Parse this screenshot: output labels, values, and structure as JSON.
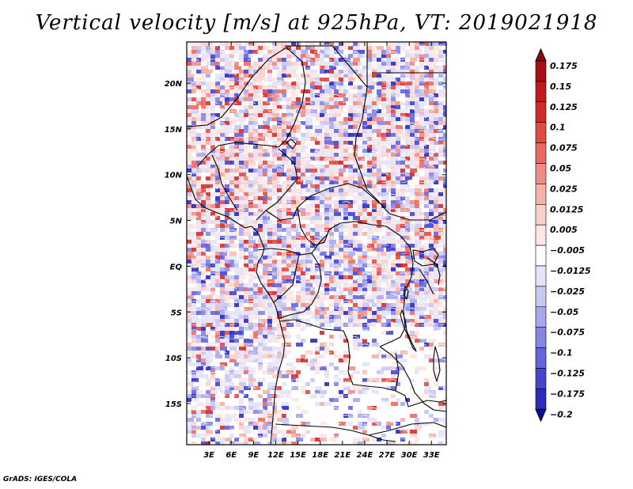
{
  "title": "Vertical velocity [m/s] at 925hPa, VT: 2019021918",
  "credit": "GrADS: IGES/COLA",
  "map": {
    "lon_range": [
      0,
      35
    ],
    "lat_range": [
      -19.5,
      24.5
    ],
    "lon_ticks": [
      {
        "value": 3,
        "label": "3E"
      },
      {
        "value": 6,
        "label": "6E"
      },
      {
        "value": 9,
        "label": "9E"
      },
      {
        "value": 12,
        "label": "12E"
      },
      {
        "value": 15,
        "label": "15E"
      },
      {
        "value": 18,
        "label": "18E"
      },
      {
        "value": 21,
        "label": "21E"
      },
      {
        "value": 24,
        "label": "24E"
      },
      {
        "value": 27,
        "label": "27E"
      },
      {
        "value": 30,
        "label": "30E"
      },
      {
        "value": 33,
        "label": "33E"
      }
    ],
    "lat_ticks": [
      {
        "value": 20,
        "label": "20N"
      },
      {
        "value": 15,
        "label": "15N"
      },
      {
        "value": 10,
        "label": "10N"
      },
      {
        "value": 5,
        "label": "5N"
      },
      {
        "value": 0,
        "label": "EQ"
      },
      {
        "value": -5,
        "label": "5S"
      },
      {
        "value": -10,
        "label": "10S"
      },
      {
        "value": -15,
        "label": "15S"
      }
    ]
  },
  "colorbar": {
    "levels": [
      {
        "label": "0.175",
        "color": "#a50f15"
      },
      {
        "label": "0.15",
        "color": "#c01a1f"
      },
      {
        "label": "0.125",
        "color": "#d42a2a"
      },
      {
        "label": "0.1",
        "color": "#e24a43"
      },
      {
        "label": "0.075",
        "color": "#ea6a63"
      },
      {
        "label": "0.05",
        "color": "#f08d86"
      },
      {
        "label": "0.025",
        "color": "#f6b1ab"
      },
      {
        "label": "0.0125",
        "color": "#fad0cc"
      },
      {
        "label": "0.005",
        "color": "#fde6e3"
      },
      {
        "label": "−0.005",
        "color": "#ffffff"
      },
      {
        "label": "−0.0125",
        "color": "#e3e3fa"
      },
      {
        "label": "−0.025",
        "color": "#c7c7f4"
      },
      {
        "label": "−0.05",
        "color": "#a8a8ee"
      },
      {
        "label": "−0.075",
        "color": "#8585e6"
      },
      {
        "label": "−0.1",
        "color": "#6464dc"
      },
      {
        "label": "−0.125",
        "color": "#4545d0"
      },
      {
        "label": "−0.175",
        "color": "#2a2abd"
      },
      {
        "label": "−0.2",
        "color": "#1a1aa3"
      }
    ],
    "top_color": "#8b0a10",
    "bottom_color": "#10108a"
  }
}
